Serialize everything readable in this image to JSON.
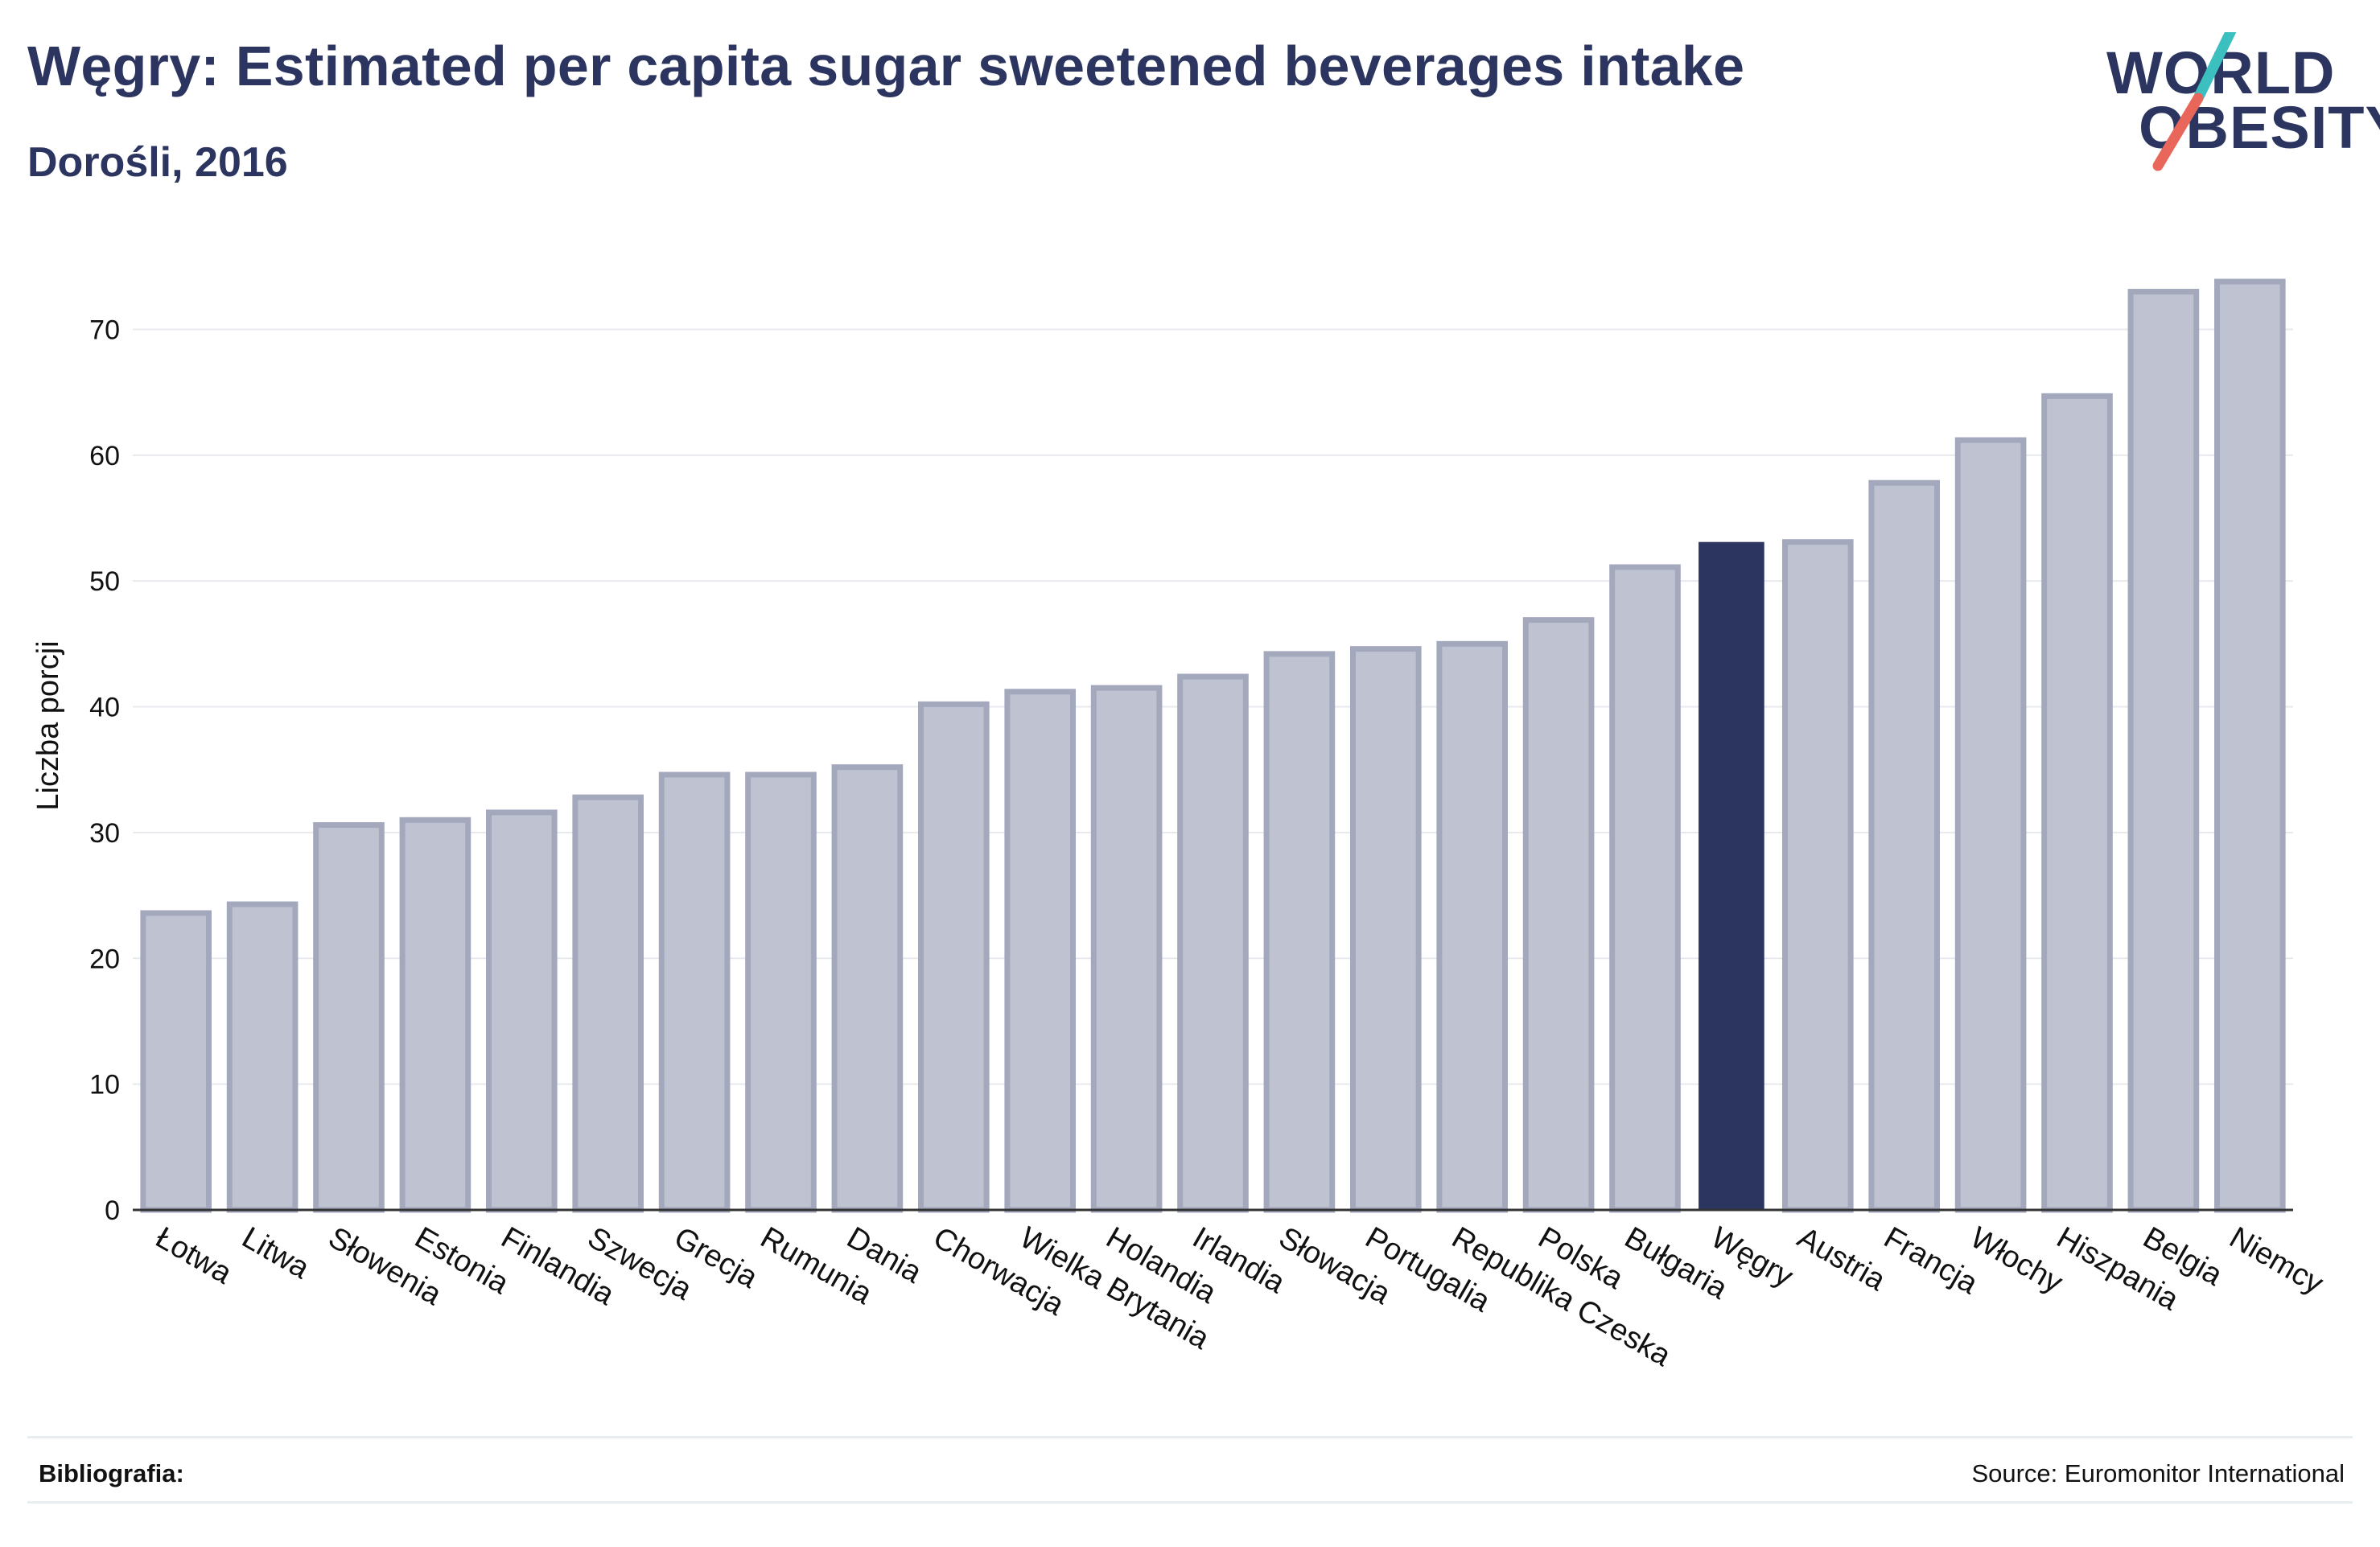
{
  "header": {
    "title": "Węgry: Estimated per capita sugar sweetened beverages intake",
    "subtitle": "Dorośli, 2016"
  },
  "logo": {
    "line1": "WORLD",
    "line2": "OBESITY",
    "colors": {
      "text": "#2b3560",
      "accent_teal": "#3bbfbf",
      "accent_coral": "#e8675a"
    }
  },
  "footer": {
    "bibliography_label": "Bibliografia:",
    "source": "Source: Euromonitor International"
  },
  "colors": {
    "bar": "#bfc2d0",
    "bar_outline": "#a3a8bd",
    "highlight": "#2b3560",
    "grid": "#e7e9ee",
    "axis": "#333333",
    "text": "#2b3560"
  },
  "chart_data": {
    "type": "bar",
    "ylabel": "Liczba porcji",
    "xlabel": "",
    "ylim": [
      0,
      77
    ],
    "yticks": [
      0,
      10,
      20,
      30,
      40,
      50,
      60,
      70
    ],
    "grid": true,
    "highlight_category": "Węgry",
    "categories": [
      "Łotwa",
      "Litwa",
      "Słowenia",
      "Estonia",
      "Finlandia",
      "Szwecja",
      "Grecja",
      "Rumunia",
      "Dania",
      "Chorwacja",
      "Wielka Brytania",
      "Holandia",
      "Irlandia",
      "Słowacja",
      "Portugalia",
      "Republika Czeska",
      "Polska",
      "Bułgaria",
      "Węgry",
      "Austria",
      "Francja",
      "Włochy",
      "Hiszpania",
      "Belgia",
      "Niemcy"
    ],
    "values": [
      23.6,
      24.3,
      30.6,
      31.0,
      31.6,
      32.8,
      34.6,
      34.6,
      35.2,
      40.2,
      41.2,
      41.5,
      42.4,
      44.2,
      44.6,
      45.0,
      46.9,
      51.1,
      53.1,
      53.1,
      57.8,
      61.2,
      64.7,
      73.0,
      73.8
    ]
  }
}
